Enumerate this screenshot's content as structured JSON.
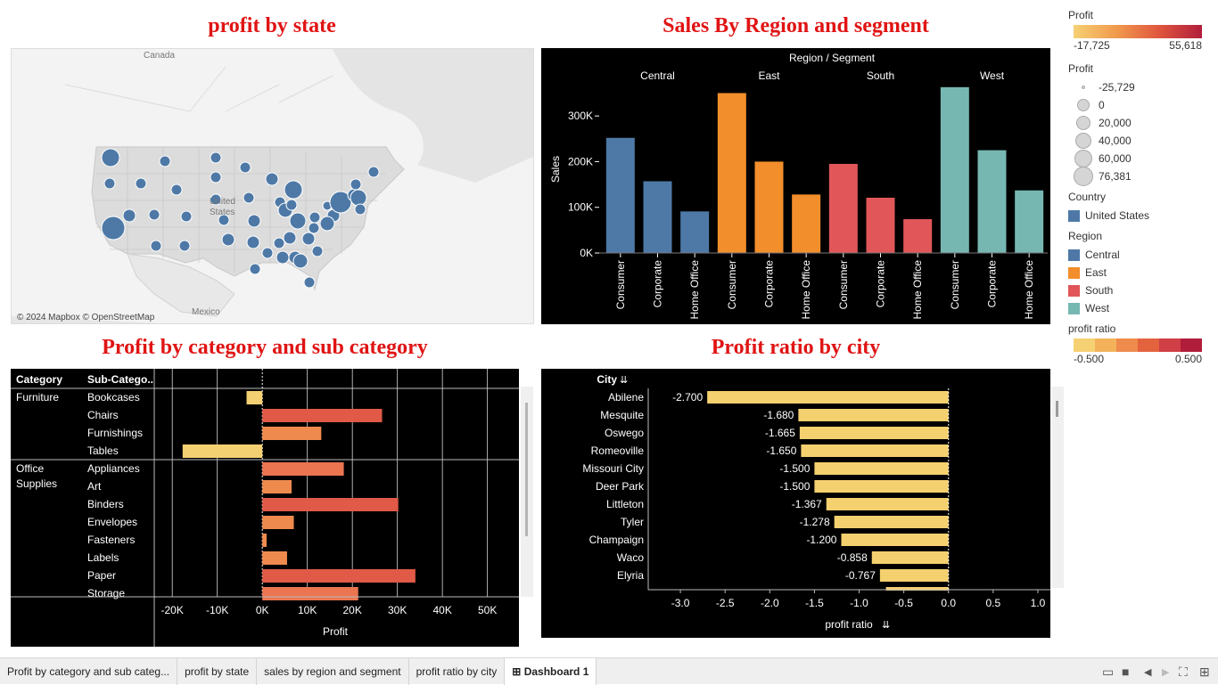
{
  "titles": {
    "map": "profit by state",
    "sales": "Sales By Region and segment",
    "category": "Profit by category and sub category",
    "city": "Profit ratio by city"
  },
  "map": {
    "label_canada": "Canada",
    "label_us": "United States",
    "label_mexico": "Mexico",
    "attribution": "© 2024 Mapbox © OpenStreetMap",
    "bubble_color": "#4e79a7"
  },
  "sales_chart": {
    "header": "Region / Segment",
    "ylabel": "Sales"
  },
  "category_chart": {
    "col_category": "Category",
    "col_subcategory": "Sub-Catego..",
    "xlabel": "Profit",
    "categories": [
      "Furniture",
      "Office Supplies"
    ]
  },
  "city_chart": {
    "col_city": "City",
    "xlabel": "profit ratio"
  },
  "legend": {
    "profit_color_title": "Profit",
    "profit_color_min": "-17,725",
    "profit_color_max": "55,618",
    "profit_size_title": "Profit",
    "profit_size_items": [
      "-25,729",
      "0",
      "20,000",
      "40,000",
      "60,000",
      "76,381"
    ],
    "country_title": "Country",
    "country_item": "United States",
    "region_title": "Region",
    "region_items": [
      {
        "label": "Central",
        "color": "#4e79a7"
      },
      {
        "label": "East",
        "color": "#f28e2b"
      },
      {
        "label": "South",
        "color": "#e15759"
      },
      {
        "label": "West",
        "color": "#76b7b2"
      }
    ],
    "ratio_title": "profit ratio",
    "ratio_min": "-0.500",
    "ratio_max": "0.500"
  },
  "tabs": [
    {
      "label": "Profit by category and sub categ...",
      "active": false
    },
    {
      "label": "profit by state",
      "active": false
    },
    {
      "label": "sales by region and segment",
      "active": false
    },
    {
      "label": "profit ratio by city",
      "active": false
    },
    {
      "label": "Dashboard 1",
      "active": true
    }
  ],
  "chart_data": [
    {
      "type": "bar",
      "title": "Sales By Region and segment",
      "ylabel": "Sales",
      "xlabel": "Region / Segment",
      "regions": [
        "Central",
        "East",
        "South",
        "West"
      ],
      "segments": [
        "Consumer",
        "Corporate",
        "Home Office"
      ],
      "region_colors": [
        "#4e79a7",
        "#f28e2b",
        "#e15759",
        "#76b7b2"
      ],
      "values": [
        [
          252000,
          157000,
          91000
        ],
        [
          350000,
          200000,
          128000
        ],
        [
          195000,
          121000,
          74000
        ],
        [
          363000,
          225000,
          137000
        ]
      ],
      "yticks": [
        "0K",
        "100K",
        "200K",
        "300K"
      ],
      "ylim": [
        0,
        390000
      ]
    },
    {
      "type": "bar",
      "orientation": "horizontal",
      "title": "Profit by category and sub category",
      "xlabel": "Profit",
      "rows": [
        {
          "category": "Furniture",
          "sub": "Bookcases",
          "value": -3500
        },
        {
          "category": "Furniture",
          "sub": "Chairs",
          "value": 26600
        },
        {
          "category": "Furniture",
          "sub": "Furnishings",
          "value": 13100
        },
        {
          "category": "Furniture",
          "sub": "Tables",
          "value": -17700
        },
        {
          "category": "Office Supplies",
          "sub": "Appliances",
          "value": 18100
        },
        {
          "category": "Office Supplies",
          "sub": "Art",
          "value": 6500
        },
        {
          "category": "Office Supplies",
          "sub": "Binders",
          "value": 30200
        },
        {
          "category": "Office Supplies",
          "sub": "Envelopes",
          "value": 7000
        },
        {
          "category": "Office Supplies",
          "sub": "Fasteners",
          "value": 950
        },
        {
          "category": "Office Supplies",
          "sub": "Labels",
          "value": 5500
        },
        {
          "category": "Office Supplies",
          "sub": "Paper",
          "value": 34000
        },
        {
          "category": "Office Supplies",
          "sub": "Storage",
          "value": 21300
        }
      ],
      "xticks": [
        "-20K",
        "-10K",
        "0K",
        "10K",
        "20K",
        "30K",
        "40K",
        "50K"
      ],
      "xlim": [
        -20000,
        50000
      ]
    },
    {
      "type": "bar",
      "orientation": "horizontal",
      "title": "Profit ratio by city",
      "xlabel": "profit ratio",
      "cities": [
        "Abilene",
        "Mesquite",
        "Oswego",
        "Romeoville",
        "Missouri City",
        "Deer Park",
        "Littleton",
        "Tyler",
        "Champaign",
        "Waco",
        "Elyria"
      ],
      "values": [
        -2.7,
        -1.68,
        -1.665,
        -1.65,
        -1.5,
        -1.5,
        -1.367,
        -1.278,
        -1.2,
        -0.858,
        -0.767
      ],
      "labels": [
        "-2.700",
        "-1.680",
        "-1.665",
        "-1.650",
        "-1.500",
        "-1.500",
        "-1.367",
        "-1.278",
        "-1.200",
        "-0.858",
        "-0.767"
      ],
      "xticks": [
        "-3.0",
        "-2.5",
        "-2.0",
        "-1.5",
        "-1.0",
        "-0.5",
        "0.0",
        "0.5",
        "1.0"
      ],
      "xlim": [
        -3.0,
        1.0
      ]
    }
  ]
}
